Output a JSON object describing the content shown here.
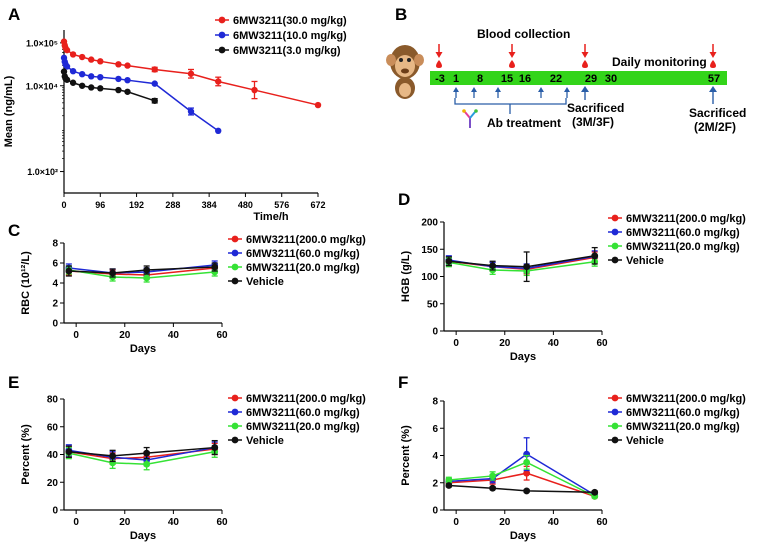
{
  "colors": {
    "red": "#e8201c",
    "blue": "#1f29d6",
    "green": "#35e235",
    "black": "#111111",
    "timeline_green": "#33d41a"
  },
  "chart_data": [
    {
      "id": "A",
      "panel_letter": "A",
      "type": "line",
      "xlabel": "Time/h",
      "ylabel": "Mean (ng/mL)",
      "yscale": "log",
      "xlim": [
        0,
        672
      ],
      "ylim_log10": [
        1.5,
        5.3
      ],
      "xticks": [
        0,
        96,
        192,
        288,
        384,
        480,
        576,
        672
      ],
      "yticks": [
        {
          "v": 2,
          "label": "1.0×10²"
        },
        {
          "v": 4,
          "label": "1.0×10⁴"
        },
        {
          "v": 5,
          "label": "1.0×10⁵"
        }
      ],
      "legend": "top-right",
      "series": [
        {
          "name": "6MW3211(30.0 mg/kg)",
          "color": "red",
          "x": [
            0,
            2,
            4,
            8,
            24,
            48,
            72,
            96,
            144,
            168,
            240,
            336,
            408,
            504,
            672
          ],
          "log10y": [
            5.03,
            4.94,
            4.88,
            4.83,
            4.73,
            4.67,
            4.61,
            4.57,
            4.5,
            4.47,
            4.38,
            4.28,
            4.1,
            3.9,
            3.55
          ],
          "err": [
            0,
            0,
            0,
            0,
            0,
            0,
            0,
            0,
            0,
            0,
            0.05,
            0.1,
            0.1,
            0.2,
            0
          ]
        },
        {
          "name": "6MW3211(10.0 mg/kg)",
          "color": "blue",
          "x": [
            0,
            2,
            4,
            8,
            24,
            48,
            72,
            96,
            144,
            168,
            240,
            336,
            408
          ],
          "log10y": [
            4.65,
            4.56,
            4.5,
            4.45,
            4.34,
            4.27,
            4.22,
            4.2,
            4.16,
            4.13,
            4.05,
            3.4,
            2.95
          ],
          "err": [
            0,
            0,
            0,
            0,
            0,
            0,
            0,
            0,
            0,
            0,
            0,
            0.08,
            0
          ]
        },
        {
          "name": "6MW3211(3.0 mg/kg)",
          "color": "black",
          "x": [
            0,
            2,
            4,
            8,
            24,
            48,
            72,
            96,
            144,
            168,
            240
          ],
          "log10y": [
            4.33,
            4.22,
            4.17,
            4.14,
            4.07,
            4.0,
            3.96,
            3.94,
            3.9,
            3.86,
            3.65
          ],
          "err": [
            0,
            0,
            0,
            0,
            0,
            0,
            0,
            0,
            0,
            0,
            0.05
          ]
        }
      ]
    },
    {
      "id": "C",
      "panel_letter": "C",
      "type": "line",
      "xlabel": "Days",
      "ylabel": "RBC (10¹²/L)",
      "xlim": [
        -5,
        60
      ],
      "ylim": [
        0,
        8
      ],
      "xticks": [
        0,
        20,
        40,
        60
      ],
      "yticks": [
        0,
        2,
        4,
        6,
        8
      ],
      "legend": "right",
      "series": [
        {
          "name": "6MW3211(200.0 mg/kg)",
          "color": "red",
          "x": [
            -3,
            15,
            29,
            57
          ],
          "y": [
            5.2,
            4.9,
            4.8,
            5.5
          ],
          "err": [
            0.4,
            0.4,
            0.4,
            0.4
          ]
        },
        {
          "name": "6MW3211(60.0 mg/kg)",
          "color": "blue",
          "x": [
            -3,
            15,
            29,
            57
          ],
          "y": [
            5.5,
            5.0,
            5.1,
            5.8
          ],
          "err": [
            0.4,
            0.4,
            0.4,
            0.4
          ]
        },
        {
          "name": "6MW3211(20.0 mg/kg)",
          "color": "green",
          "x": [
            -3,
            15,
            29,
            57
          ],
          "y": [
            5.3,
            4.6,
            4.5,
            5.1
          ],
          "err": [
            0.4,
            0.4,
            0.4,
            0.4
          ]
        },
        {
          "name": "Vehicle",
          "color": "black",
          "x": [
            -3,
            15,
            29,
            57
          ],
          "y": [
            5.2,
            5.0,
            5.3,
            5.6
          ],
          "err": [
            0.5,
            0.4,
            0.4,
            0.4
          ]
        }
      ]
    },
    {
      "id": "D",
      "panel_letter": "D",
      "type": "line",
      "xlabel": "Days",
      "ylabel": "HGB (g/L)",
      "xlim": [
        -5,
        60
      ],
      "ylim": [
        0,
        200
      ],
      "xticks": [
        0,
        20,
        40,
        60
      ],
      "yticks": [
        0,
        50,
        100,
        150,
        200
      ],
      "legend": "right",
      "series": [
        {
          "name": "6MW3211(200.0 mg/kg)",
          "color": "red",
          "x": [
            -3,
            15,
            29,
            57
          ],
          "y": [
            128,
            118,
            113,
            135
          ],
          "err": [
            8,
            8,
            8,
            10
          ]
        },
        {
          "name": "6MW3211(60.0 mg/kg)",
          "color": "blue",
          "x": [
            -3,
            15,
            29,
            57
          ],
          "y": [
            130,
            118,
            115,
            137
          ],
          "err": [
            8,
            8,
            8,
            10
          ]
        },
        {
          "name": "6MW3211(20.0 mg/kg)",
          "color": "green",
          "x": [
            -3,
            15,
            29,
            57
          ],
          "y": [
            126,
            112,
            110,
            127
          ],
          "err": [
            8,
            8,
            8,
            8
          ]
        },
        {
          "name": "Vehicle",
          "color": "black",
          "x": [
            -3,
            15,
            29,
            57
          ],
          "y": [
            128,
            120,
            118,
            138
          ],
          "err": [
            8,
            8,
            27,
            15
          ]
        }
      ]
    },
    {
      "id": "E",
      "panel_letter": "E",
      "type": "line",
      "xlabel": "Days",
      "ylabel": "Percent (%)",
      "xlim": [
        -5,
        60
      ],
      "ylim": [
        0,
        80
      ],
      "xticks": [
        0,
        20,
        40,
        60
      ],
      "yticks": [
        0,
        20,
        40,
        60,
        80
      ],
      "legend": "right",
      "series": [
        {
          "name": "6MW3211(200.0 mg/kg)",
          "color": "red",
          "x": [
            -3,
            15,
            29,
            57
          ],
          "y": [
            42,
            37,
            38,
            44
          ],
          "err": [
            4,
            4,
            4,
            4
          ]
        },
        {
          "name": "6MW3211(60.0 mg/kg)",
          "color": "blue",
          "x": [
            -3,
            15,
            29,
            57
          ],
          "y": [
            43,
            38,
            36,
            45
          ],
          "err": [
            4,
            4,
            4,
            4
          ]
        },
        {
          "name": "6MW3211(20.0 mg/kg)",
          "color": "green",
          "x": [
            -3,
            15,
            29,
            57
          ],
          "y": [
            41,
            34,
            33,
            42
          ],
          "err": [
            4,
            4,
            4,
            4
          ]
        },
        {
          "name": "Vehicle",
          "color": "black",
          "x": [
            -3,
            15,
            29,
            57
          ],
          "y": [
            42,
            39,
            41,
            45
          ],
          "err": [
            4,
            4,
            4,
            5
          ]
        }
      ]
    },
    {
      "id": "F",
      "panel_letter": "F",
      "type": "line",
      "xlabel": "Days",
      "ylabel": "Percent (%)",
      "xlim": [
        -5,
        60
      ],
      "ylim": [
        0,
        8
      ],
      "xticks": [
        0,
        20,
        40,
        60
      ],
      "yticks": [
        0,
        2,
        4,
        6,
        8
      ],
      "legend": "right",
      "series": [
        {
          "name": "6MW3211(200.0 mg/kg)",
          "color": "red",
          "x": [
            -3,
            15,
            29,
            57
          ],
          "y": [
            2.0,
            2.2,
            2.7,
            1.0
          ],
          "err": [
            0.2,
            0.3,
            0.5,
            0.1
          ]
        },
        {
          "name": "6MW3211(60.0 mg/kg)",
          "color": "blue",
          "x": [
            -3,
            15,
            29,
            57
          ],
          "y": [
            2.1,
            2.3,
            4.1,
            1.1
          ],
          "err": [
            0.2,
            0.3,
            1.2,
            0.1
          ]
        },
        {
          "name": "6MW3211(20.0 mg/kg)",
          "color": "green",
          "x": [
            -3,
            15,
            29,
            57
          ],
          "y": [
            2.2,
            2.5,
            3.5,
            1.0
          ],
          "err": [
            0.2,
            0.3,
            0.5,
            0.1
          ]
        },
        {
          "name": "Vehicle",
          "color": "black",
          "x": [
            -3,
            15,
            29,
            57
          ],
          "y": [
            1.8,
            1.6,
            1.4,
            1.3
          ],
          "err": [
            0.1,
            0.1,
            0.1,
            0.1
          ]
        }
      ]
    }
  ],
  "diagram_b": {
    "panel_letter": "B",
    "blood_collection_label": "Blood collection",
    "daily_monitoring_label": "Daily monitoring",
    "timeline_days": [
      "-3",
      "1",
      "8",
      "15",
      "16",
      "22",
      "29",
      "30",
      "57"
    ],
    "ab_treatment_label": "Ab treatment",
    "sacrificed_1": "Sacrificed",
    "sacrificed_1_detail": "(3M/3F)",
    "sacrificed_2": "Sacrificed",
    "sacrificed_2_detail": "(2M/2F)",
    "monkey_icon": "monkey-icon",
    "blood_drop_icon": "blood-drop-icon",
    "antibody_icon": "antibody-icon"
  }
}
